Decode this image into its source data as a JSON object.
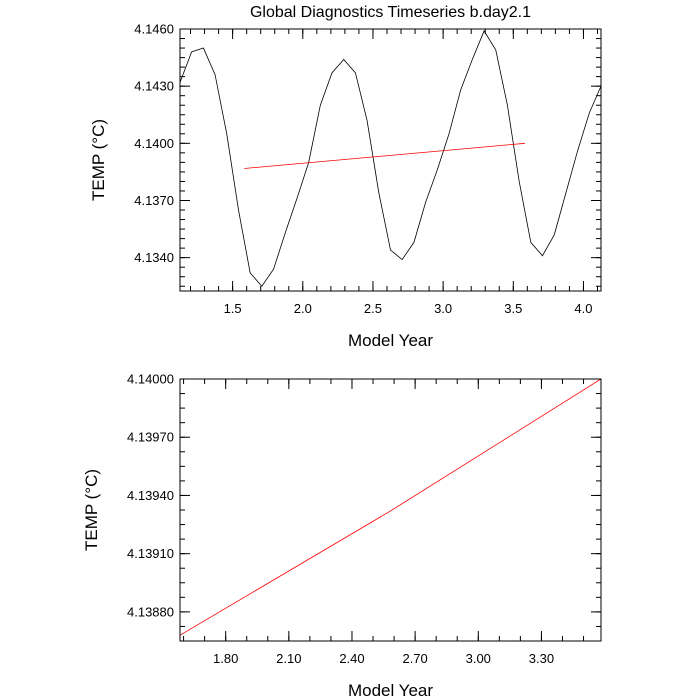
{
  "chart_data": [
    {
      "type": "line",
      "title": "Global Diagnostics Timeseries b.day2.1",
      "xlabel": "Model Year",
      "ylabel": "TEMP (°C)",
      "xlim": [
        1.125,
        4.125
      ],
      "ylim": [
        4.13225,
        4.146
      ],
      "x_ticks": [
        1.5,
        2.0,
        2.5,
        3.0,
        3.5,
        4.0
      ],
      "x_tick_labels": [
        "1.5",
        "2.0",
        "2.5",
        "3.0",
        "3.5",
        "4.0"
      ],
      "y_ticks": [
        4.134,
        4.137,
        4.14,
        4.143,
        4.146
      ],
      "y_tick_labels": [
        "4.1340",
        "4.1370",
        "4.1400",
        "4.1430",
        "4.1460"
      ],
      "grid": false,
      "series": [
        {
          "color": "#000000",
          "x": [
            1.125,
            1.208,
            1.292,
            1.375,
            1.458,
            1.542,
            1.625,
            1.708,
            1.792,
            1.875,
            1.958,
            2.042,
            2.125,
            2.208,
            2.292,
            2.375,
            2.458,
            2.542,
            2.625,
            2.708,
            2.792,
            2.875,
            2.958,
            3.042,
            3.125,
            3.208,
            3.292,
            3.375,
            3.458,
            3.542,
            3.625,
            3.708,
            3.792,
            3.875,
            3.958,
            4.042,
            4.125
          ],
          "values": [
            4.1432,
            4.1448,
            4.145,
            4.1436,
            4.1405,
            4.1365,
            4.1332,
            4.1325,
            4.1334,
            4.1353,
            4.1371,
            4.139,
            4.142,
            4.1437,
            4.1444,
            4.1437,
            4.1412,
            4.1374,
            4.1344,
            4.1339,
            4.1348,
            4.1369,
            4.1386,
            4.1405,
            4.1428,
            4.1444,
            4.1459,
            4.1449,
            4.142,
            4.138,
            4.1348,
            4.1341,
            4.1352,
            4.1374,
            4.1396,
            4.1416,
            4.143
          ]
        },
        {
          "color": "#ff0000",
          "x": [
            1.583,
            3.583
          ],
          "values": [
            4.13868,
            4.14
          ]
        }
      ]
    },
    {
      "type": "line",
      "title": "",
      "xlabel": "Model Year",
      "ylabel": "TEMP (°C)",
      "xlim": [
        1.583,
        3.583
      ],
      "ylim": [
        4.13865,
        4.14
      ],
      "x_ticks": [
        1.8,
        2.1,
        2.4,
        2.7,
        3.0,
        3.3
      ],
      "x_tick_labels": [
        "1.80",
        "2.10",
        "2.40",
        "2.70",
        "3.00",
        "3.30"
      ],
      "y_ticks": [
        4.1388,
        4.1391,
        4.1394,
        4.1397,
        4.14
      ],
      "y_tick_labels": [
        "4.13880",
        "4.13910",
        "4.13940",
        "4.13970",
        "4.14000"
      ],
      "grid": false,
      "series": [
        {
          "color": "#ff0000",
          "x": [
            1.583,
            2.583,
            3.583
          ],
          "values": [
            4.13868,
            4.13932,
            4.14
          ]
        }
      ]
    }
  ]
}
